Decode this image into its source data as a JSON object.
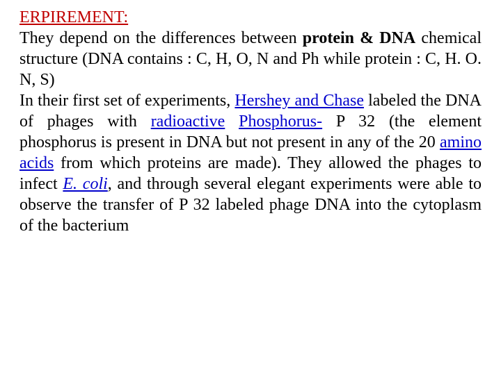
{
  "title": "ERPIREMENT:",
  "line1_pre": "They depend on the differences between ",
  "line1_bold": "protein & DNA",
  "line2": "chemical structure (DNA contains  : C, H, O, N and Ph     while protein : C, H. O. N, S)",
  "line3_pre": "In their first set of experiments, ",
  "hc": "Hershey and Chase",
  "line3_post": " labeled the DNA of phages with ",
  "radio": "radioactive",
  "sp": " ",
  "phos": "Phosphorus-",
  "p32": " P 32 (the element phosphorus is present in DNA but not present in any of the 20 ",
  "amino": "amino acids",
  "after_amino": " from which proteins are made). They allowed the phages to infect ",
  "ecoli": "E. coli",
  "tail": ", and through several elegant experiments were able to observe the transfer of P 32 labeled phage DNA into the cytoplasm of the bacterium"
}
